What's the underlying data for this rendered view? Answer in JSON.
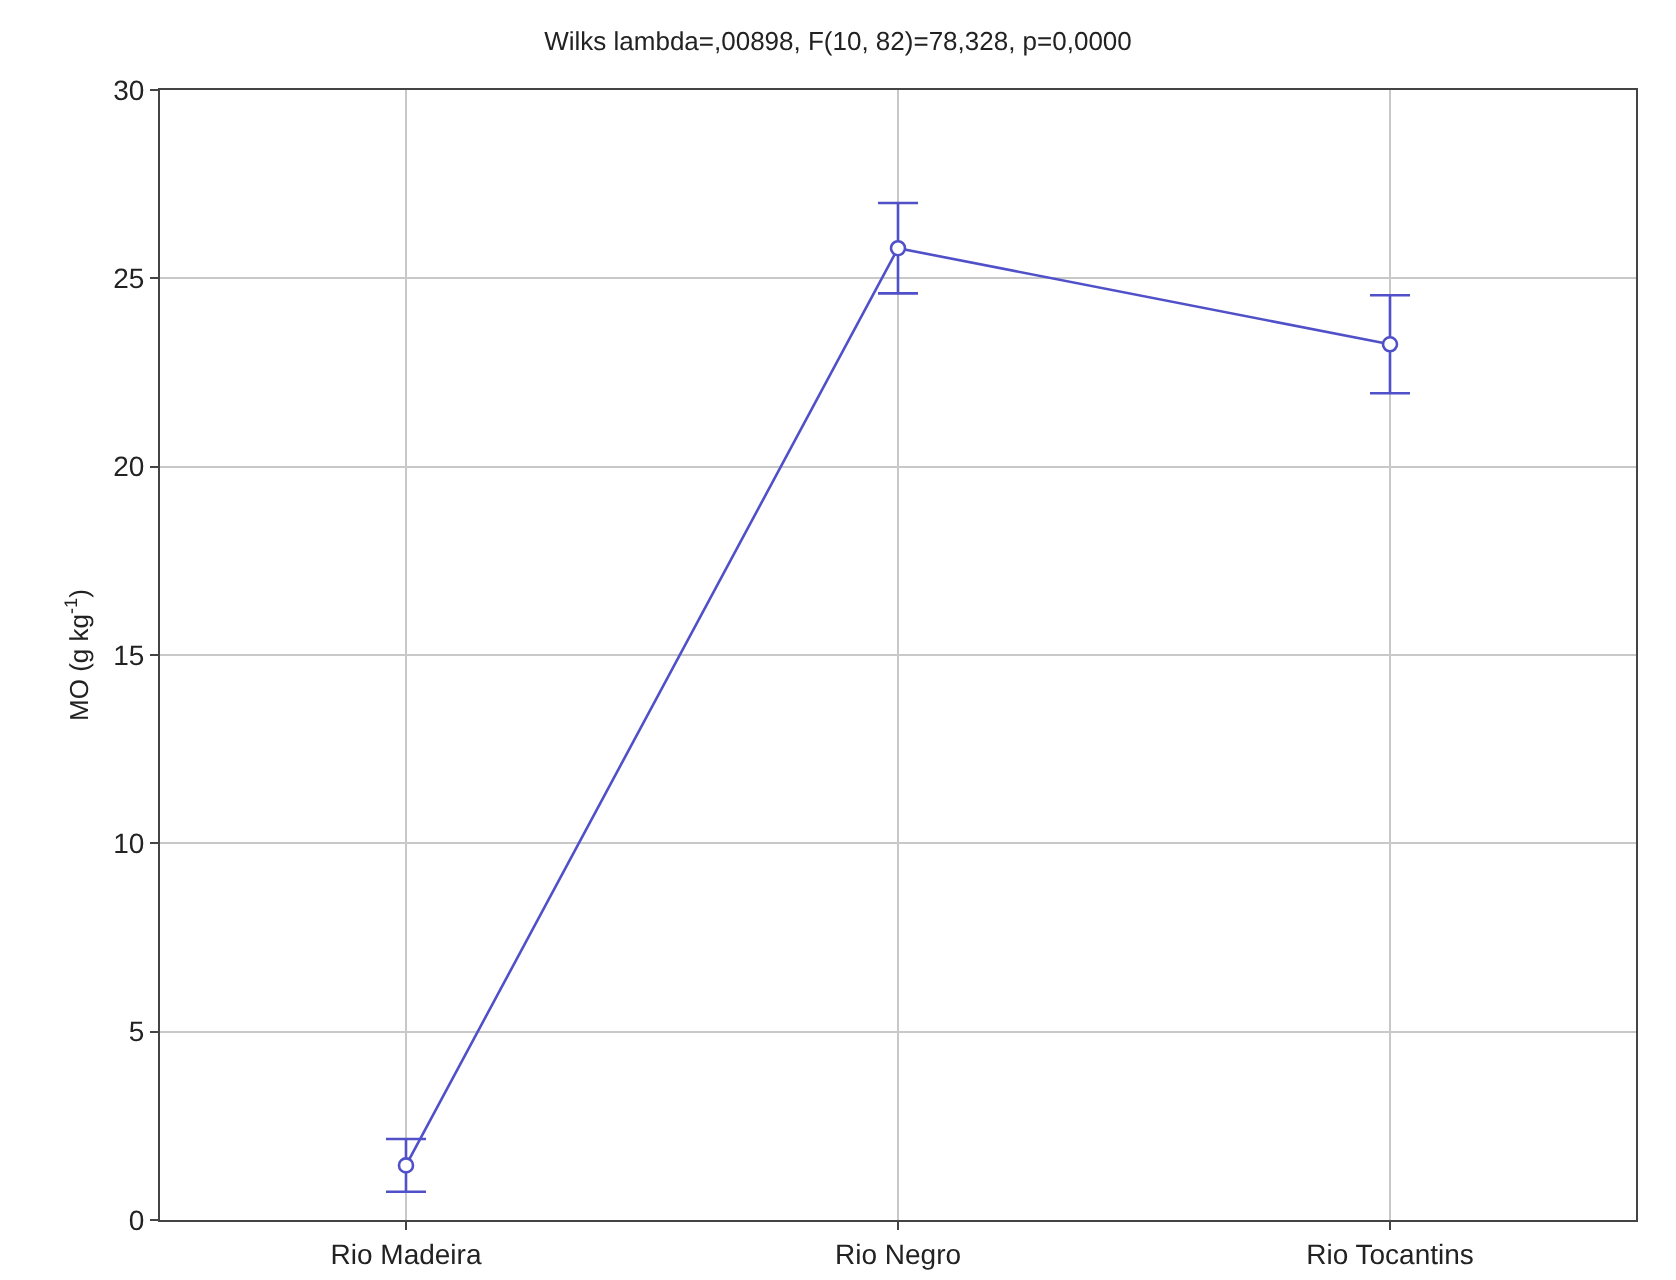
{
  "chart_data": {
    "type": "line",
    "title": "Wilks lambda=,00898, F(10, 82)=78,328, p=0,0000",
    "ylabel": "MO (g kg$^{-1}$)",
    "categories": [
      "Rio Madeira",
      "Rio Negro",
      "Rio Tocantins"
    ],
    "series": [
      {
        "color": "#5050c8",
        "values": [
          1.45,
          25.8,
          23.25
        ],
        "errors": [
          0.7,
          1.2,
          1.3
        ]
      }
    ],
    "ylim": [
      0,
      30
    ],
    "yticks": [
      0,
      5,
      10,
      15,
      20,
      25,
      30
    ],
    "grid": true,
    "marker": "circle",
    "line_style": "solid"
  }
}
